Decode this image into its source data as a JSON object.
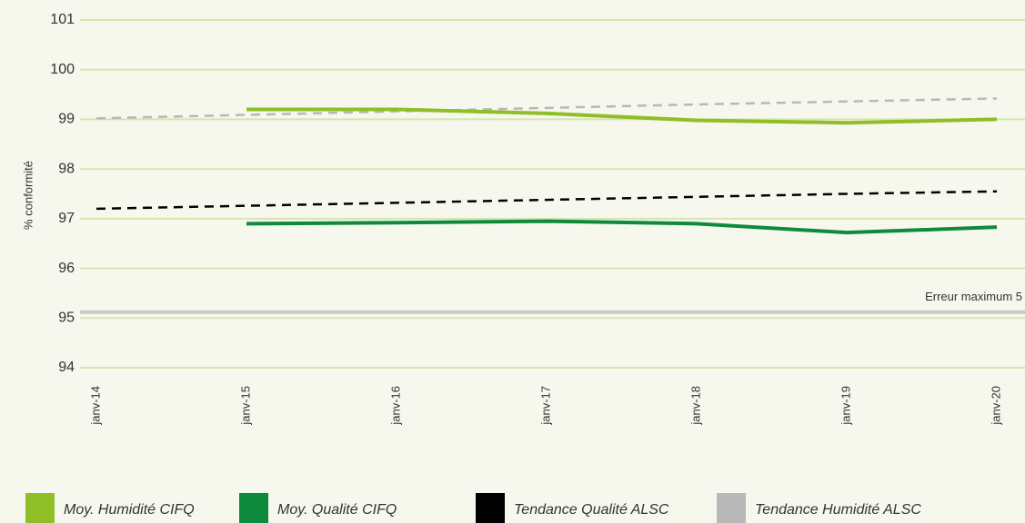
{
  "chart_data": {
    "type": "line",
    "y_label": "% conformité",
    "categories": [
      "janv-14",
      "janv-15",
      "janv-16",
      "janv-17",
      "janv-18",
      "janv-19",
      "janv-20"
    ],
    "series": [
      {
        "name": "Moy. Humidité CIFQ",
        "color": "#8fbe26",
        "dashed": false,
        "values": [
          null,
          99.2,
          99.2,
          99.12,
          98.98,
          98.93,
          99.0
        ]
      },
      {
        "name": "Moy. Qualité CIFQ",
        "color": "#0e8a3c",
        "dashed": false,
        "values": [
          null,
          96.9,
          96.92,
          96.95,
          96.9,
          96.72,
          96.83
        ]
      },
      {
        "name": "Tendance Qualité ALSC",
        "color": "#000000",
        "dashed": true,
        "values": [
          97.2,
          97.26,
          97.32,
          97.38,
          97.44,
          97.5,
          97.55
        ]
      },
      {
        "name": "Tendance Humidité ALSC",
        "color": "#b8b8b8",
        "dashed": true,
        "values": [
          99.02,
          99.09,
          99.16,
          99.23,
          99.3,
          99.36,
          99.42
        ]
      }
    ],
    "reference_line": {
      "value": 95.12,
      "label": "Erreur maximum 5",
      "color": "#c8c8c8"
    },
    "ylim": [
      94,
      101
    ],
    "yticks": [
      94,
      95,
      96,
      97,
      98,
      99,
      100,
      101
    ],
    "grid": true
  }
}
